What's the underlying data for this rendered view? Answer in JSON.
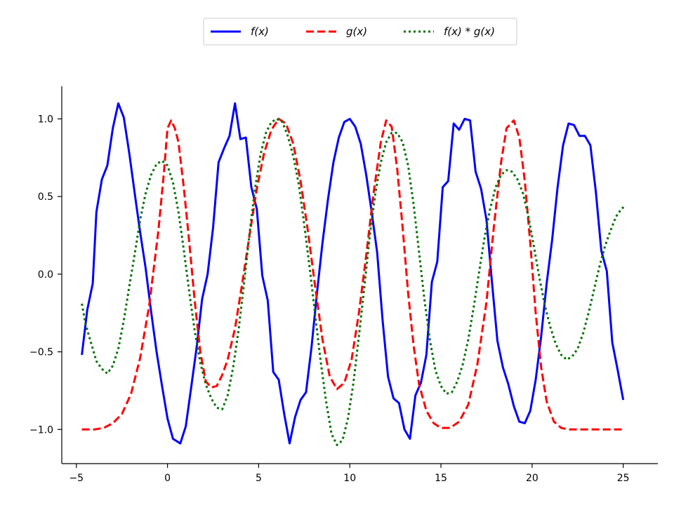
{
  "chart_data": {
    "type": "line",
    "title": "",
    "xlabel": "",
    "ylabel": "",
    "xlim": [
      -5.8,
      26.9
    ],
    "ylim": [
      -1.22,
      1.21
    ],
    "x_ticks": [
      {
        "value": -5,
        "label": "−5"
      },
      {
        "value": 0,
        "label": "0"
      },
      {
        "value": 5,
        "label": "5"
      },
      {
        "value": 10,
        "label": "10"
      },
      {
        "value": 15,
        "label": "15"
      },
      {
        "value": 20,
        "label": "20"
      },
      {
        "value": 25,
        "label": "25"
      }
    ],
    "y_ticks": [
      {
        "value": -1.0,
        "label": "−1.0"
      },
      {
        "value": -0.5,
        "label": "−0.5"
      },
      {
        "value": 0.0,
        "label": "0.0"
      },
      {
        "value": 0.5,
        "label": "0.5"
      },
      {
        "value": 1.0,
        "label": "1.0"
      }
    ],
    "legend_position": "top-center",
    "grid": false,
    "series": [
      {
        "name": "f(x)",
        "color": "#0000ff",
        "style": "solid",
        "points": [
          [
            -4.7,
            -0.52
          ],
          [
            -4.4,
            -0.23
          ],
          [
            -4.1,
            -0.06
          ],
          [
            -3.9,
            0.4
          ],
          [
            -3.6,
            0.61
          ],
          [
            -3.3,
            0.7
          ],
          [
            -3.0,
            0.94
          ],
          [
            -2.7,
            1.1
          ],
          [
            -2.4,
            1.01
          ],
          [
            -2.1,
            0.78
          ],
          [
            -1.8,
            0.52
          ],
          [
            -1.5,
            0.27
          ],
          [
            -1.2,
            0.04
          ],
          [
            -0.9,
            -0.24
          ],
          [
            -0.6,
            -0.5
          ],
          [
            -0.3,
            -0.72
          ],
          [
            0.0,
            -0.93
          ],
          [
            0.3,
            -1.06
          ],
          [
            0.7,
            -1.09
          ],
          [
            1.0,
            -0.98
          ],
          [
            1.3,
            -0.73
          ],
          [
            1.6,
            -0.47
          ],
          [
            1.9,
            -0.16
          ],
          [
            2.2,
            0.0
          ],
          [
            2.5,
            0.3
          ],
          [
            2.8,
            0.72
          ],
          [
            3.1,
            0.81
          ],
          [
            3.4,
            0.89
          ],
          [
            3.7,
            1.1
          ],
          [
            4.0,
            0.87
          ],
          [
            4.3,
            0.88
          ],
          [
            4.6,
            0.56
          ],
          [
            4.9,
            0.42
          ],
          [
            5.2,
            -0.01
          ],
          [
            5.5,
            -0.17
          ],
          [
            5.8,
            -0.63
          ],
          [
            6.1,
            -0.68
          ],
          [
            6.4,
            -0.9
          ],
          [
            6.7,
            -1.09
          ],
          [
            7.0,
            -0.92
          ],
          [
            7.3,
            -0.81
          ],
          [
            7.6,
            -0.76
          ],
          [
            7.9,
            -0.47
          ],
          [
            8.2,
            -0.12
          ],
          [
            8.5,
            0.2
          ],
          [
            8.8,
            0.48
          ],
          [
            9.1,
            0.72
          ],
          [
            9.4,
            0.88
          ],
          [
            9.7,
            0.98
          ],
          [
            10.0,
            1.0
          ],
          [
            10.3,
            0.95
          ],
          [
            10.6,
            0.84
          ],
          [
            10.9,
            0.64
          ],
          [
            11.2,
            0.4
          ],
          [
            11.5,
            0.14
          ],
          [
            11.8,
            -0.3
          ],
          [
            12.1,
            -0.66
          ],
          [
            12.4,
            -0.8
          ],
          [
            12.7,
            -0.83
          ],
          [
            13.0,
            -1.0
          ],
          [
            13.3,
            -1.06
          ],
          [
            13.6,
            -0.78
          ],
          [
            13.9,
            -0.7
          ],
          [
            14.2,
            -0.52
          ],
          [
            14.5,
            -0.05
          ],
          [
            14.8,
            0.08
          ],
          [
            15.1,
            0.56
          ],
          [
            15.4,
            0.6
          ],
          [
            15.7,
            0.97
          ],
          [
            16.0,
            0.93
          ],
          [
            16.3,
            1.0
          ],
          [
            16.6,
            0.99
          ],
          [
            16.9,
            0.66
          ],
          [
            17.2,
            0.55
          ],
          [
            17.5,
            0.35
          ],
          [
            17.8,
            -0.05
          ],
          [
            18.1,
            -0.43
          ],
          [
            18.4,
            -0.6
          ],
          [
            18.7,
            -0.71
          ],
          [
            19.0,
            -0.85
          ],
          [
            19.3,
            -0.95
          ],
          [
            19.6,
            -0.96
          ],
          [
            19.9,
            -0.88
          ],
          [
            20.2,
            -0.68
          ],
          [
            20.5,
            -0.4
          ],
          [
            20.8,
            -0.06
          ],
          [
            21.1,
            0.22
          ],
          [
            21.4,
            0.56
          ],
          [
            21.7,
            0.83
          ],
          [
            22.0,
            0.97
          ],
          [
            22.3,
            0.96
          ],
          [
            22.6,
            0.89
          ],
          [
            22.9,
            0.89
          ],
          [
            23.2,
            0.83
          ],
          [
            23.5,
            0.53
          ],
          [
            23.8,
            0.15
          ],
          [
            24.1,
            0.02
          ],
          [
            24.4,
            -0.44
          ],
          [
            24.7,
            -0.62
          ],
          [
            25.0,
            -0.81
          ]
        ]
      },
      {
        "name": "g(x)",
        "color": "#ff0000",
        "style": "dashed",
        "points": [
          [
            -4.7,
            -1.0
          ],
          [
            -4.0,
            -1.0
          ],
          [
            -3.5,
            -0.99
          ],
          [
            -3.0,
            -0.96
          ],
          [
            -2.5,
            -0.9
          ],
          [
            -2.0,
            -0.77
          ],
          [
            -1.5,
            -0.54
          ],
          [
            -1.0,
            -0.2
          ],
          [
            -0.5,
            0.28
          ],
          [
            -0.2,
            0.65
          ],
          [
            0.0,
            0.94
          ],
          [
            0.2,
            0.99
          ],
          [
            0.4,
            0.94
          ],
          [
            0.6,
            0.85
          ],
          [
            0.9,
            0.55
          ],
          [
            1.2,
            0.2
          ],
          [
            1.5,
            -0.18
          ],
          [
            1.8,
            -0.5
          ],
          [
            2.1,
            -0.69
          ],
          [
            2.4,
            -0.73
          ],
          [
            2.7,
            -0.72
          ],
          [
            3.0,
            -0.65
          ],
          [
            3.3,
            -0.55
          ],
          [
            3.7,
            -0.35
          ],
          [
            4.1,
            -0.06
          ],
          [
            4.5,
            0.25
          ],
          [
            4.9,
            0.55
          ],
          [
            5.3,
            0.78
          ],
          [
            5.7,
            0.93
          ],
          [
            6.1,
            1.0
          ],
          [
            6.5,
            0.97
          ],
          [
            6.9,
            0.84
          ],
          [
            7.3,
            0.6
          ],
          [
            7.7,
            0.28
          ],
          [
            8.1,
            -0.08
          ],
          [
            8.5,
            -0.42
          ],
          [
            8.9,
            -0.66
          ],
          [
            9.3,
            -0.74
          ],
          [
            9.7,
            -0.7
          ],
          [
            10.1,
            -0.55
          ],
          [
            10.5,
            -0.25
          ],
          [
            10.9,
            0.12
          ],
          [
            11.3,
            0.52
          ],
          [
            11.7,
            0.85
          ],
          [
            12.0,
            0.99
          ],
          [
            12.3,
            0.95
          ],
          [
            12.6,
            0.68
          ],
          [
            12.9,
            0.3
          ],
          [
            13.2,
            -0.12
          ],
          [
            13.5,
            -0.46
          ],
          [
            13.8,
            -0.71
          ],
          [
            14.2,
            -0.88
          ],
          [
            14.6,
            -0.96
          ],
          [
            15.0,
            -0.99
          ],
          [
            15.5,
            -0.99
          ],
          [
            16.0,
            -0.95
          ],
          [
            16.5,
            -0.84
          ],
          [
            17.0,
            -0.58
          ],
          [
            17.5,
            -0.18
          ],
          [
            17.9,
            0.3
          ],
          [
            18.3,
            0.72
          ],
          [
            18.6,
            0.94
          ],
          [
            19.0,
            0.99
          ],
          [
            19.3,
            0.88
          ],
          [
            19.6,
            0.6
          ],
          [
            19.9,
            0.2
          ],
          [
            20.2,
            -0.25
          ],
          [
            20.5,
            -0.6
          ],
          [
            20.8,
            -0.82
          ],
          [
            21.2,
            -0.95
          ],
          [
            21.6,
            -0.99
          ],
          [
            22.0,
            -1.0
          ],
          [
            23.0,
            -1.0
          ],
          [
            24.0,
            -1.0
          ],
          [
            25.0,
            -1.0
          ]
        ]
      },
      {
        "name": "f(x) * g(x)",
        "color": "#007000",
        "style": "dotted",
        "points": [
          [
            -4.7,
            -0.19
          ],
          [
            -4.5,
            -0.32
          ],
          [
            -4.2,
            -0.44
          ],
          [
            -3.9,
            -0.56
          ],
          [
            -3.6,
            -0.61
          ],
          [
            -3.3,
            -0.64
          ],
          [
            -3.0,
            -0.59
          ],
          [
            -2.7,
            -0.48
          ],
          [
            -2.4,
            -0.3
          ],
          [
            -2.1,
            -0.08
          ],
          [
            -1.8,
            0.13
          ],
          [
            -1.5,
            0.35
          ],
          [
            -1.2,
            0.52
          ],
          [
            -0.9,
            0.64
          ],
          [
            -0.6,
            0.71
          ],
          [
            -0.3,
            0.73
          ],
          [
            0.0,
            0.7
          ],
          [
            0.3,
            0.59
          ],
          [
            0.6,
            0.4
          ],
          [
            0.9,
            0.15
          ],
          [
            1.2,
            -0.12
          ],
          [
            1.5,
            -0.37
          ],
          [
            1.8,
            -0.57
          ],
          [
            2.1,
            -0.71
          ],
          [
            2.4,
            -0.8
          ],
          [
            2.7,
            -0.86
          ],
          [
            3.0,
            -0.87
          ],
          [
            3.3,
            -0.78
          ],
          [
            3.6,
            -0.6
          ],
          [
            3.9,
            -0.36
          ],
          [
            4.2,
            -0.06
          ],
          [
            4.5,
            0.26
          ],
          [
            4.8,
            0.55
          ],
          [
            5.1,
            0.77
          ],
          [
            5.4,
            0.91
          ],
          [
            5.7,
            0.98
          ],
          [
            6.0,
            1.0
          ],
          [
            6.3,
            0.98
          ],
          [
            6.6,
            0.89
          ],
          [
            6.9,
            0.76
          ],
          [
            7.2,
            0.58
          ],
          [
            7.5,
            0.32
          ],
          [
            7.8,
            0.04
          ],
          [
            8.1,
            -0.26
          ],
          [
            8.4,
            -0.56
          ],
          [
            8.7,
            -0.82
          ],
          [
            9.0,
            -1.03
          ],
          [
            9.3,
            -1.1
          ],
          [
            9.6,
            -1.07
          ],
          [
            9.9,
            -0.93
          ],
          [
            10.2,
            -0.7
          ],
          [
            10.5,
            -0.4
          ],
          [
            10.8,
            -0.08
          ],
          [
            11.1,
            0.25
          ],
          [
            11.4,
            0.52
          ],
          [
            11.7,
            0.72
          ],
          [
            12.0,
            0.85
          ],
          [
            12.3,
            0.91
          ],
          [
            12.6,
            0.91
          ],
          [
            12.9,
            0.85
          ],
          [
            13.2,
            0.7
          ],
          [
            13.5,
            0.45
          ],
          [
            13.8,
            0.14
          ],
          [
            14.1,
            -0.17
          ],
          [
            14.4,
            -0.43
          ],
          [
            14.7,
            -0.62
          ],
          [
            15.0,
            -0.72
          ],
          [
            15.3,
            -0.77
          ],
          [
            15.6,
            -0.76
          ],
          [
            15.9,
            -0.69
          ],
          [
            16.2,
            -0.58
          ],
          [
            16.5,
            -0.42
          ],
          [
            16.8,
            -0.21
          ],
          [
            17.1,
            0.02
          ],
          [
            17.4,
            0.24
          ],
          [
            17.7,
            0.42
          ],
          [
            18.0,
            0.56
          ],
          [
            18.3,
            0.64
          ],
          [
            18.6,
            0.67
          ],
          [
            18.9,
            0.66
          ],
          [
            19.2,
            0.61
          ],
          [
            19.5,
            0.52
          ],
          [
            19.8,
            0.37
          ],
          [
            20.1,
            0.18
          ],
          [
            20.4,
            -0.02
          ],
          [
            20.7,
            -0.2
          ],
          [
            21.0,
            -0.34
          ],
          [
            21.3,
            -0.45
          ],
          [
            21.6,
            -0.52
          ],
          [
            21.9,
            -0.55
          ],
          [
            22.2,
            -0.53
          ],
          [
            22.5,
            -0.48
          ],
          [
            22.8,
            -0.38
          ],
          [
            23.1,
            -0.25
          ],
          [
            23.4,
            -0.1
          ],
          [
            23.7,
            0.05
          ],
          [
            24.0,
            0.18
          ],
          [
            24.3,
            0.28
          ],
          [
            24.6,
            0.37
          ],
          [
            24.9,
            0.42
          ],
          [
            25.1,
            0.44
          ]
        ]
      }
    ]
  }
}
